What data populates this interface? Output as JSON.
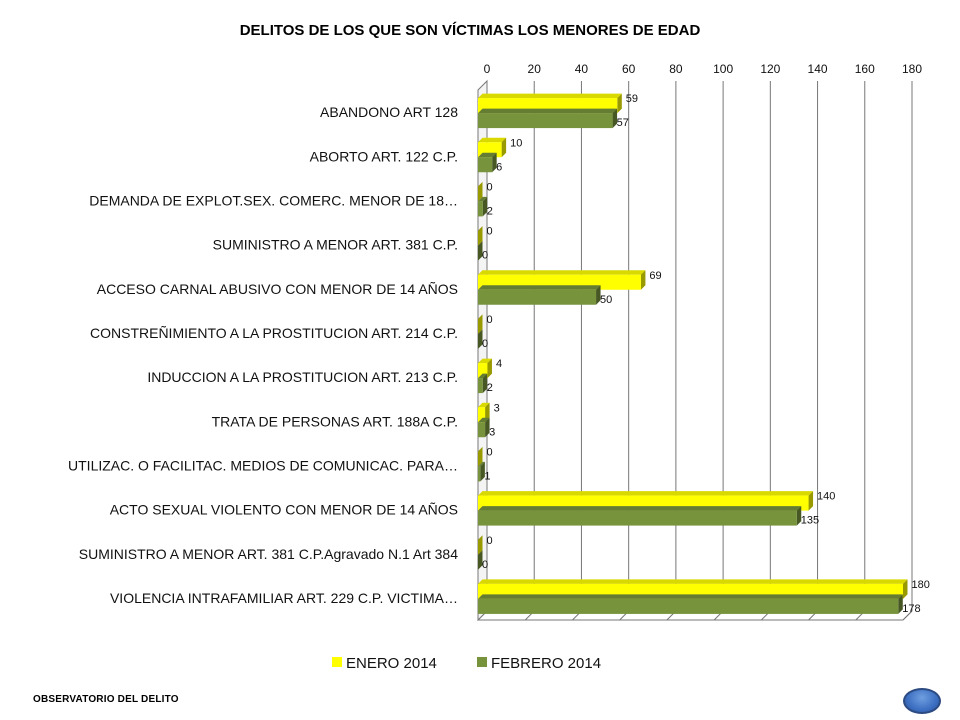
{
  "footer": {
    "label": "OBSERVATORIO DEL DELITO"
  },
  "chart_data": {
    "type": "bar",
    "orientation": "horizontal",
    "style": "3d-clustered",
    "title": "DELITOS DE LOS QUE SON VÍCTIMAS LOS MENORES DE EDAD",
    "xlabel": "",
    "ylabel": "",
    "xlim": [
      0,
      180
    ],
    "ticks": [
      0,
      20,
      40,
      60,
      80,
      100,
      120,
      140,
      160,
      180
    ],
    "axis_position": "top",
    "grid": true,
    "legend_position": "bottom",
    "categories": [
      "ABANDONO ART 128",
      "ABORTO ART. 122 C.P.",
      "DEMANDA DE EXPLOT.SEX. COMERC. MENOR DE 18…",
      "SUMINISTRO A MENOR ART. 381 C.P.",
      "ACCESO CARNAL ABUSIVO CON MENOR DE 14 AÑOS",
      "CONSTREÑIMIENTO A LA PROSTITUCION ART. 214 C.P.",
      "INDUCCION A LA PROSTITUCION ART. 213 C.P.",
      "TRATA DE PERSONAS ART. 188A C.P.",
      "UTILIZAC. O FACILITAC. MEDIOS DE COMUNICAC. PARA…",
      "ACTO SEXUAL VIOLENTO CON MENOR DE 14 AÑOS",
      "SUMINISTRO A MENOR ART. 381 C.P.Agravado N.1 Art 384",
      "VIOLENCIA INTRAFAMILIAR ART. 229 C.P. VICTIMA…"
    ],
    "series": [
      {
        "name": "ENERO 2014",
        "color": "#ffff00",
        "values": [
          59,
          10,
          0,
          0,
          69,
          0,
          4,
          3,
          0,
          140,
          0,
          180
        ]
      },
      {
        "name": "FEBRERO 2014",
        "color": "#77933c",
        "values": [
          57,
          6,
          2,
          0,
          50,
          0,
          2,
          3,
          1,
          135,
          0,
          178
        ]
      }
    ]
  }
}
